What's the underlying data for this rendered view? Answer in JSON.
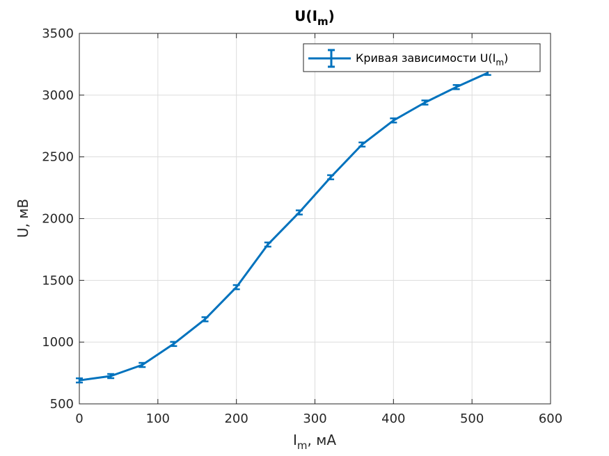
{
  "chart_data": {
    "type": "line",
    "title": {
      "main": "U(I",
      "sub": "m",
      "tail": ")"
    },
    "xlabel": {
      "main": "I",
      "sub": "m",
      "tail": ", мА"
    },
    "ylabel": "U, мВ",
    "xlim": [
      0,
      600
    ],
    "ylim": [
      500,
      3500
    ],
    "xticks": [
      "0",
      "100",
      "200",
      "300",
      "400",
      "500",
      "600"
    ],
    "yticks": [
      "500",
      "1000",
      "1500",
      "2000",
      "2500",
      "3000",
      "3500"
    ],
    "grid": true,
    "legend_position": "top-right",
    "series": [
      {
        "name": {
          "main": "Кривая зависимости U(I",
          "sub": "m",
          "tail": ")"
        },
        "color": "#0072BD",
        "error_bars": true,
        "x": [
          0,
          40,
          80,
          120,
          160,
          200,
          240,
          280,
          320,
          360,
          400,
          440,
          480,
          520
        ],
        "y": [
          690,
          725,
          815,
          985,
          1185,
          1445,
          1790,
          2050,
          2335,
          2600,
          2795,
          2940,
          3065,
          3180
        ]
      }
    ]
  }
}
